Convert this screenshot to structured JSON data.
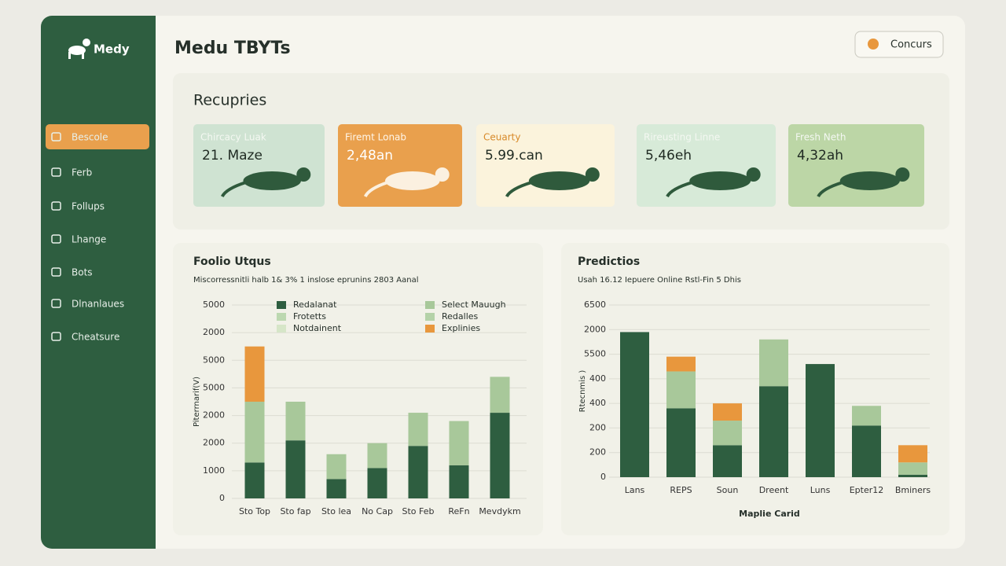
{
  "app": {
    "logo": "Medy",
    "nav": [
      "Bescole",
      "Ferb",
      "Follups",
      "Lhange",
      "Bots",
      "Dlnanlaues",
      "Cheatsure"
    ],
    "active_nav": 0
  },
  "header": {
    "title": "Medu TBYTs",
    "button": "Concurs"
  },
  "summary": {
    "title": "Recupries",
    "cards": [
      {
        "label": "Chircacy Luak",
        "value": "21. Maze",
        "color": "#cfe3d2",
        "label_color": "#f4f8f2"
      },
      {
        "label": "Firemt Lonab",
        "value": "2,48an",
        "color": "#e9a04d",
        "label_color": "#fff6ea"
      },
      {
        "label": "Ceuarty",
        "value": "5.99.can",
        "color": "#fbf3dc",
        "label_color": "#d88a2a"
      },
      {
        "label": "Rireusting Linne",
        "value": "5,46eh",
        "color": "#d7ead8",
        "label_color": "#f4f8f2"
      },
      {
        "label": "Fresh Neth",
        "value": "4,32ah",
        "color": "#bcd6a6",
        "label_color": "#f4f8f2"
      }
    ]
  },
  "chart_data": [
    {
      "type": "bar",
      "stacked": true,
      "title": "Foolio Utqus",
      "subtitle": "Miscorressnitli halb 1& 3% 1 inslose eprunins 2803 Aanal",
      "y_label": "Piterrnarif(V)",
      "grid": true,
      "categories": [
        "Sto Top",
        "Sto fap",
        "Sto lea",
        "No Cap",
        "Sto Feb",
        "ReFn",
        "Mevdykm"
      ],
      "series": [
        {
          "name": "Redalanat",
          "color": "#2e5e40",
          "values": [
            1.3,
            2.1,
            0.7,
            1.1,
            1.9,
            1.2,
            3.1
          ]
        },
        {
          "name": "Select Mauugh",
          "color": "#a8c89a",
          "values": [
            2.2,
            1.4,
            0.9,
            0.9,
            1.2,
            1.6,
            1.3
          ]
        },
        {
          "name": "Frotetts",
          "color": "#bcd8b0",
          "values": [
            null,
            null,
            null,
            null,
            null,
            null,
            null
          ]
        },
        {
          "name": "Redalles",
          "color": "#b4d2a8",
          "values": [
            null,
            null,
            null,
            null,
            null,
            null,
            null
          ]
        },
        {
          "name": "Notdainent",
          "color": "#d6e6c8",
          "values": [
            null,
            null,
            null,
            null,
            null,
            null,
            null
          ]
        },
        {
          "name": "Explinies",
          "color": "#e8973d",
          "values": [
            2.0,
            null,
            null,
            null,
            null,
            null,
            null
          ]
        }
      ],
      "ylim": [
        0,
        7
      ],
      "yticks": [
        0,
        {
          "value": 1,
          "label": "1000"
        },
        {
          "value": 2,
          "label": "2000"
        },
        {
          "value": 3,
          "label": "2000"
        },
        {
          "value": 4,
          "label": "5000"
        },
        {
          "value": 5,
          "label": "5000"
        },
        {
          "value": 6,
          "label": "2000"
        },
        {
          "value": 7,
          "label": "5000"
        }
      ]
    },
    {
      "type": "bar",
      "stacked": true,
      "title": "Predictios",
      "subtitle": "Usah 16.12 Iepuere Online Rstl-Fin 5 Dhis",
      "y_label": "Rtecnmis )",
      "x_label": "Maplie Carid",
      "grid": true,
      "categories": [
        "Lans",
        "REPS",
        "Soun",
        "Dreent",
        "Luns",
        "Epter12",
        "Bminers"
      ],
      "series": [
        {
          "color": "#2e5e40",
          "values": [
            5.9,
            2.8,
            1.3,
            3.7,
            4.6,
            2.1,
            0.1
          ]
        },
        {
          "color": "#a8c89a",
          "values": [
            null,
            1.5,
            1.0,
            1.9,
            null,
            0.8,
            0.5
          ]
        },
        {
          "color": "#e8973d",
          "values": [
            null,
            0.6,
            0.7,
            null,
            null,
            null,
            0.7
          ]
        }
      ],
      "ylim": [
        0,
        7
      ],
      "yticks": [
        0,
        {
          "value": 1,
          "label": "200"
        },
        {
          "value": 2,
          "label": "200"
        },
        {
          "value": 3,
          "label": "400"
        },
        {
          "value": 4,
          "label": "400"
        },
        {
          "value": 5,
          "label": "5500"
        },
        {
          "value": 6,
          "label": "2000"
        },
        {
          "value": 7,
          "label": "6500"
        }
      ]
    }
  ]
}
